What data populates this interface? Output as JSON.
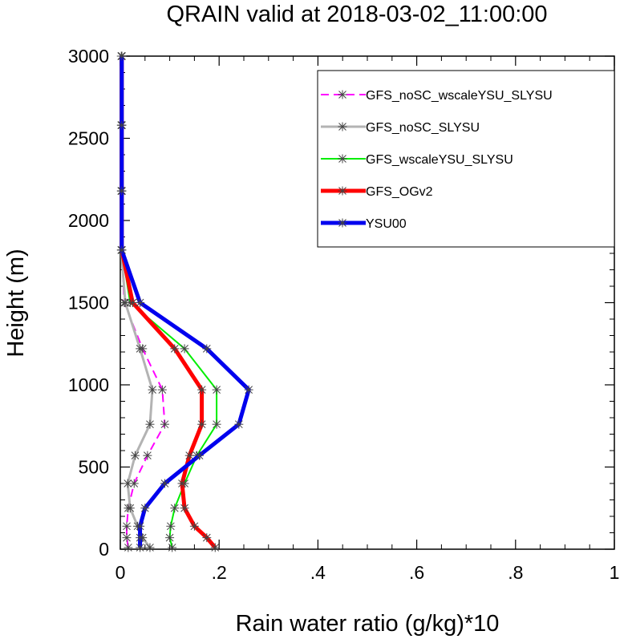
{
  "chart_data": {
    "type": "line",
    "title": "QRAIN valid at 2018-03-02_11:00:00",
    "xlabel": "Rain water ratio (g/kg)*10",
    "ylabel": "Height (m)",
    "xlim": [
      0,
      1
    ],
    "ylim": [
      0,
      3000
    ],
    "x_ticks": [
      0,
      0.2,
      0.4,
      0.6,
      0.8,
      1
    ],
    "x_tick_labels": [
      "0",
      ".2",
      ".4",
      ".6",
      ".8",
      "1"
    ],
    "y_ticks": [
      0,
      500,
      1000,
      1500,
      2000,
      2500,
      3000
    ],
    "y_tick_labels": [
      "0",
      "500",
      "1000",
      "1500",
      "2000",
      "2500",
      "3000"
    ],
    "grid": false,
    "legend_position": "top-right",
    "heights": [
      10,
      70,
      140,
      250,
      400,
      570,
      760,
      970,
      1220,
      1500,
      1820,
      2180,
      2580,
      3000
    ],
    "series": [
      {
        "name": "GFS_noSC_wscaleYSU_SLYSU",
        "color": "#ff00ff",
        "dash": true,
        "width": 2,
        "values": [
          0.016,
          0.013,
          0.013,
          0.016,
          0.028,
          0.055,
          0.09,
          0.085,
          0.045,
          0.008,
          0.003,
          0.003,
          0.003,
          0.003
        ]
      },
      {
        "name": "GFS_noSC_SLYSU",
        "color": "#b3b3b3",
        "dash": false,
        "width": 3,
        "values": [
          0.06,
          0.045,
          0.035,
          0.02,
          0.015,
          0.03,
          0.06,
          0.065,
          0.04,
          0.01,
          0.002,
          0.002,
          0.002,
          0.002
        ]
      },
      {
        "name": "GFS_wscaleYSU_SLYSU",
        "color": "#00ee00",
        "dash": false,
        "width": 2,
        "values": [
          0.105,
          0.1,
          0.102,
          0.11,
          0.13,
          0.155,
          0.195,
          0.195,
          0.13,
          0.02,
          0.003,
          0.003,
          0.003,
          0.003
        ]
      },
      {
        "name": "GFS_OGv2",
        "color": "#ff0000",
        "dash": false,
        "width": 5,
        "values": [
          0.192,
          0.175,
          0.15,
          0.13,
          0.125,
          0.14,
          0.165,
          0.165,
          0.11,
          0.025,
          0.003,
          0.003,
          0.003,
          0.003
        ]
      },
      {
        "name": "YSU00",
        "color": "#0000ee",
        "dash": false,
        "width": 5,
        "values": [
          0.04,
          0.04,
          0.04,
          0.05,
          0.09,
          0.16,
          0.24,
          0.26,
          0.175,
          0.04,
          0.003,
          0.003,
          0.003,
          0.003
        ]
      }
    ]
  }
}
